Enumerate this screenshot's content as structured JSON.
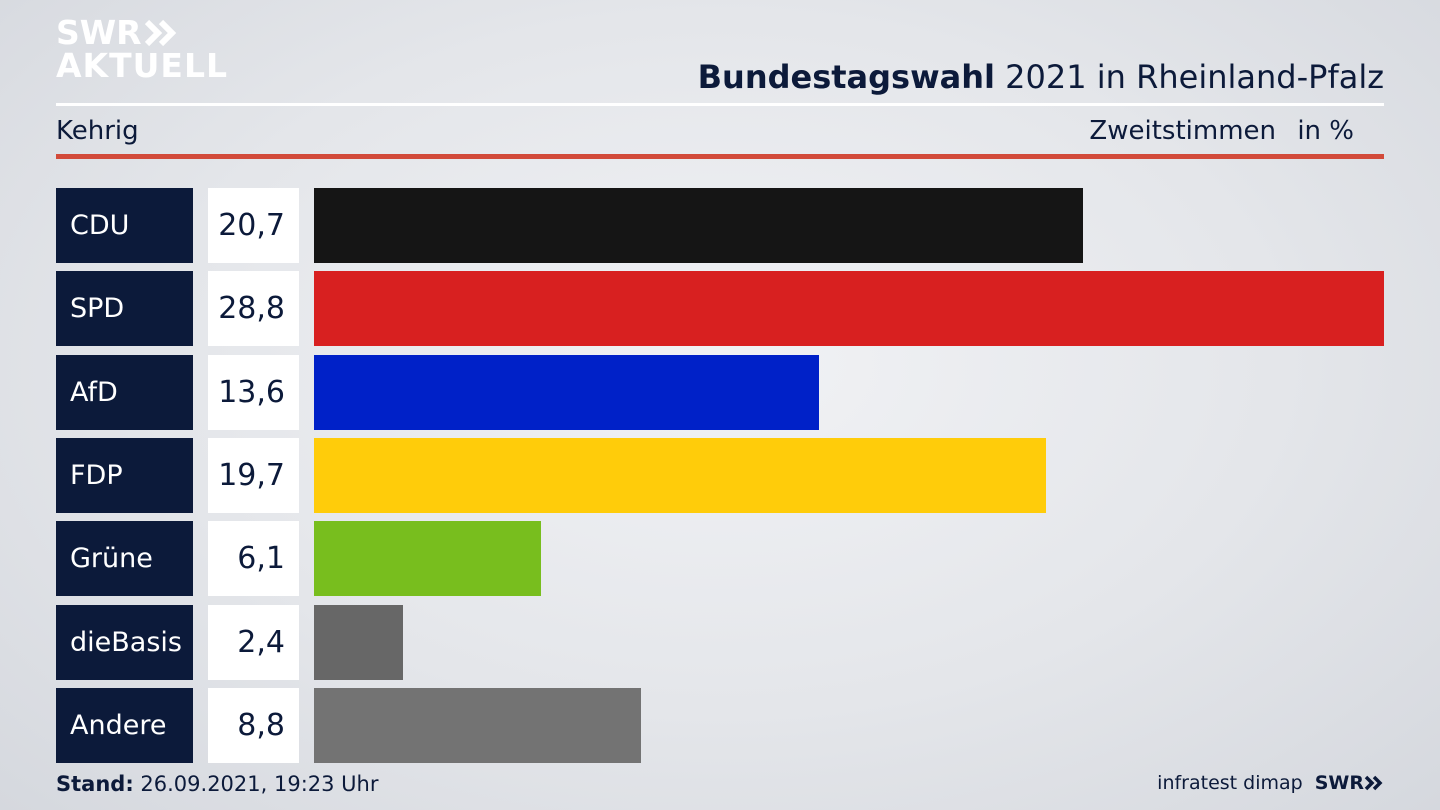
{
  "header": {
    "logo_line1": "SWR",
    "logo_line2": "AKTUELL",
    "title_bold": "Bundestagswahl",
    "title_rest": " 2021 in Rheinland-Pfalz",
    "subtitle": "Kehrig",
    "metric": "Zweitstimmen",
    "unit": "in %"
  },
  "colors": {
    "navy": "#0c1a3a",
    "accent_red": "#d24a3a",
    "CDU": "#151515",
    "SPD": "#d82020",
    "AfD": "#0021c8",
    "FDP": "#ffcc0a",
    "Gruene": "#78be1e",
    "dieBasis": "#676767",
    "Andere": "#737373"
  },
  "chart_data": {
    "type": "bar",
    "orientation": "horizontal",
    "categories": [
      "CDU",
      "SPD",
      "AfD",
      "FDP",
      "Grüne",
      "dieBasis",
      "Andere"
    ],
    "values": [
      20.7,
      28.8,
      13.6,
      19.7,
      6.1,
      2.4,
      8.8
    ],
    "value_labels": [
      "20,7",
      "28,8",
      "13,6",
      "19,7",
      "6,1",
      "2,4",
      "8,8"
    ],
    "bar_colors": [
      "#151515",
      "#d82020",
      "#0021c8",
      "#ffcc0a",
      "#78be1e",
      "#676767",
      "#737373"
    ],
    "xlim": [
      0,
      28.8
    ],
    "grid": false,
    "legend": "none"
  },
  "footer": {
    "stand_label": "Stand:",
    "stand_value": " 26.09.2021, 19:23 Uhr",
    "source": "infratest dimap",
    "brand": "SWR"
  }
}
